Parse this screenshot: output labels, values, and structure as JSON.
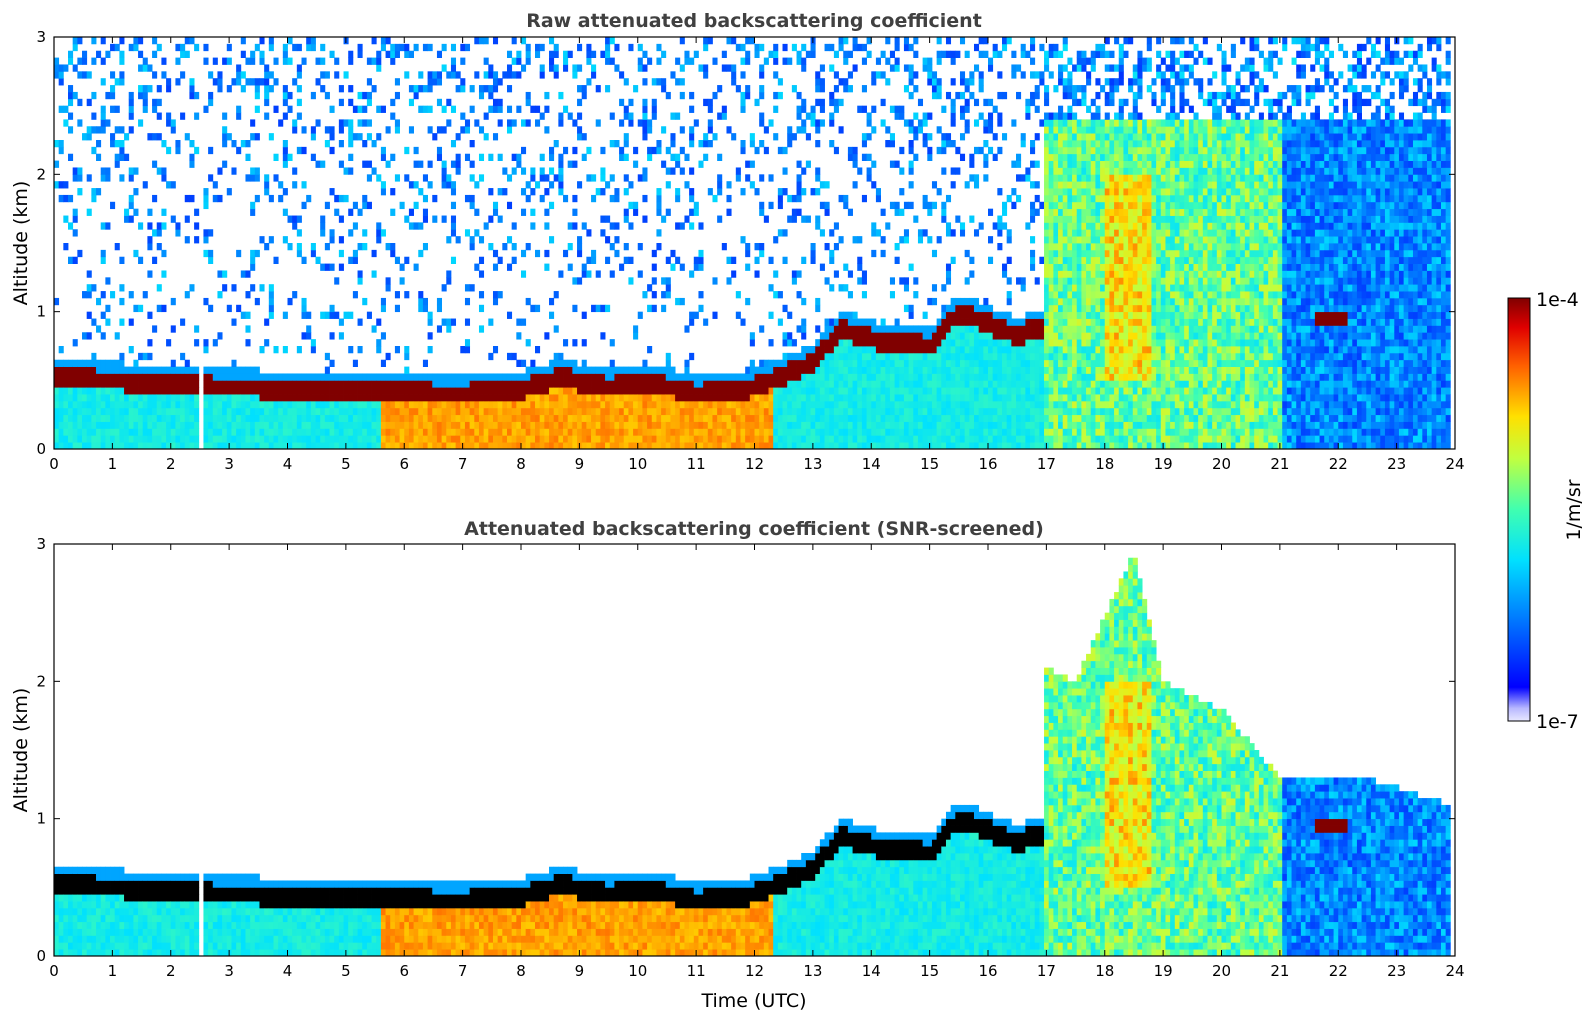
{
  "chart_data": [
    {
      "type": "heatmap",
      "title": "Raw attenuated backscattering coefficient",
      "xlabel": "",
      "ylabel": "Altitude (km)",
      "xlim": [
        0,
        24
      ],
      "ylim": [
        0,
        3
      ],
      "x_ticks": [
        "0",
        "1",
        "2",
        "3",
        "4",
        "5",
        "6",
        "7",
        "8",
        "9",
        "10",
        "11",
        "12",
        "13",
        "14",
        "15",
        "16",
        "17",
        "18",
        "19",
        "20",
        "21",
        "22",
        "23",
        "24"
      ],
      "y_ticks": [
        "0",
        "1",
        "2",
        "3"
      ],
      "data_gap_hours": [
        2.48,
        2.58
      ],
      "aerosol_layer_top_km": [
        [
          0,
          0.57
        ],
        [
          1,
          0.55
        ],
        [
          2,
          0.52
        ],
        [
          3,
          0.5
        ],
        [
          4,
          0.49
        ],
        [
          5,
          0.48
        ],
        [
          6,
          0.46
        ],
        [
          7,
          0.45
        ],
        [
          8,
          0.49
        ],
        [
          8.7,
          0.57
        ],
        [
          9.5,
          0.5
        ],
        [
          10.3,
          0.53
        ],
        [
          11,
          0.45
        ],
        [
          12,
          0.5
        ],
        [
          13,
          0.68
        ],
        [
          13.5,
          0.92
        ],
        [
          14,
          0.85
        ],
        [
          15,
          0.8
        ],
        [
          15.5,
          1.05
        ],
        [
          16.5,
          0.88
        ],
        [
          17,
          0.95
        ]
      ],
      "cloud_layers": [
        {
          "x_start": 21.6,
          "x_end": 22.2,
          "altitude_km": 0.95
        }
      ]
    },
    {
      "type": "heatmap",
      "title": "Attenuated backscattering coefficient (SNR-screened)",
      "xlabel": "Time (UTC)",
      "ylabel": "Altitude (km)",
      "xlim": [
        0,
        24
      ],
      "ylim": [
        0,
        3
      ],
      "x_ticks": [
        "0",
        "1",
        "2",
        "3",
        "4",
        "5",
        "6",
        "7",
        "8",
        "9",
        "10",
        "11",
        "12",
        "13",
        "14",
        "15",
        "16",
        "17",
        "18",
        "19",
        "20",
        "21",
        "22",
        "23",
        "24"
      ],
      "y_ticks": [
        "0",
        "1",
        "2",
        "3"
      ],
      "data_gap_hours": [
        2.48,
        2.58
      ],
      "signal_top_km": [
        [
          0,
          0.6
        ],
        [
          12.5,
          0.6
        ],
        [
          13,
          0.8
        ],
        [
          13.5,
          1.0
        ],
        [
          14,
          0.85
        ],
        [
          15,
          0.9
        ],
        [
          15.5,
          1.18
        ],
        [
          16.5,
          1.0
        ],
        [
          17,
          2.1
        ],
        [
          17.5,
          2.0
        ],
        [
          18.5,
          2.95
        ],
        [
          19,
          2.0
        ],
        [
          20,
          1.8
        ],
        [
          21,
          1.3
        ],
        [
          21.5,
          1.3
        ],
        [
          22.5,
          1.3
        ],
        [
          23.9,
          1.1
        ]
      ]
    }
  ],
  "colorbar": {
    "label": "1/m/sr",
    "max_label": "1e-4",
    "min_label": "1e-7",
    "scale": "log",
    "colormap": "jet"
  }
}
